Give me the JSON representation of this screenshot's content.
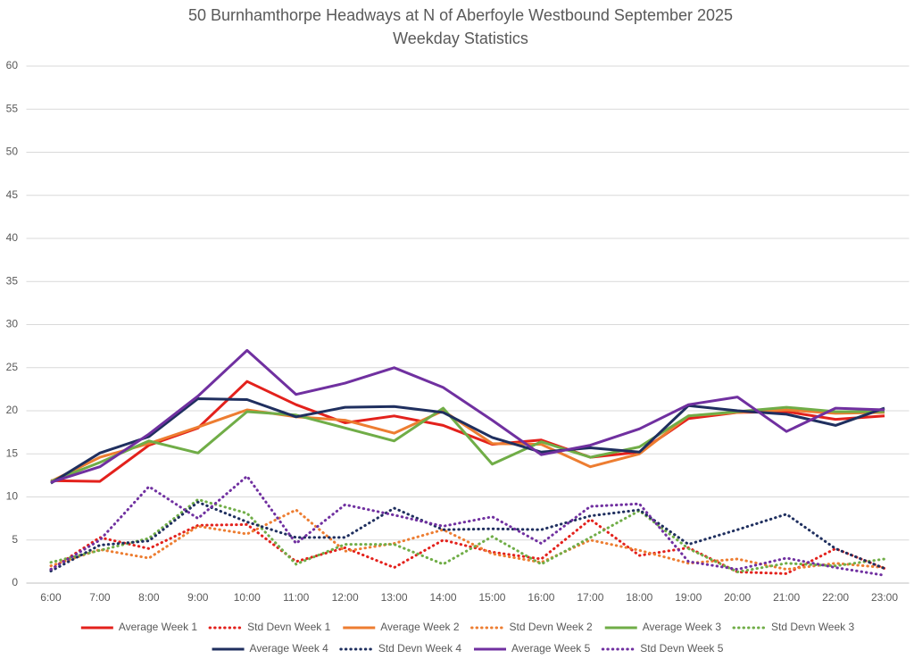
{
  "chart_data": {
    "type": "line",
    "title": "50 Burnhamthorpe Headways at N of Aberfoyle Westbound September 2025",
    "subtitle": "Weekday Statistics",
    "categories": [
      "6:00",
      "7:00",
      "8:00",
      "9:00",
      "10:00",
      "11:00",
      "12:00",
      "13:00",
      "14:00",
      "15:00",
      "16:00",
      "17:00",
      "18:00",
      "19:00",
      "20:00",
      "21:00",
      "22:00",
      "23:00"
    ],
    "ylim": [
      0,
      60
    ],
    "yticks": [
      0,
      5,
      10,
      15,
      20,
      25,
      30,
      35,
      40,
      45,
      50,
      55,
      60
    ],
    "grid": true,
    "legend": "bottom",
    "series": [
      {
        "name": "Average Week 1",
        "color": "#e3211c",
        "style": "solid",
        "values": [
          11.9,
          11.8,
          16.0,
          18.0,
          23.4,
          20.7,
          18.6,
          19.4,
          18.3,
          16.1,
          16.6,
          14.6,
          15.2,
          19.1,
          19.8,
          19.9,
          19.0,
          19.4
        ]
      },
      {
        "name": "Std Devn Week 1",
        "color": "#e3211c",
        "style": "dotted",
        "values": [
          1.6,
          5.3,
          4.0,
          6.7,
          6.8,
          2.5,
          4.1,
          1.8,
          5.0,
          3.6,
          2.8,
          7.4,
          3.2,
          4.1,
          1.3,
          1.1,
          4.0,
          1.7
        ]
      },
      {
        "name": "Average Week 2",
        "color": "#ed7d31",
        "style": "solid",
        "values": [
          11.8,
          14.6,
          16.2,
          18.1,
          20.1,
          19.3,
          18.9,
          17.4,
          20.0,
          16.2,
          16.1,
          13.5,
          15.0,
          19.4,
          19.8,
          20.1,
          19.7,
          19.8
        ]
      },
      {
        "name": "Std Devn Week 2",
        "color": "#ed7d31",
        "style": "dotted",
        "values": [
          2.0,
          3.9,
          2.9,
          6.6,
          5.7,
          8.5,
          3.7,
          4.6,
          6.2,
          3.4,
          2.4,
          5.0,
          3.8,
          2.3,
          2.8,
          1.6,
          2.3,
          1.8
        ]
      },
      {
        "name": "Average Week 3",
        "color": "#70ad47",
        "style": "solid",
        "values": [
          11.8,
          14.0,
          16.5,
          15.1,
          19.9,
          19.5,
          18.0,
          16.5,
          20.3,
          13.8,
          16.4,
          14.6,
          15.8,
          19.4,
          19.9,
          20.4,
          19.9,
          19.9
        ]
      },
      {
        "name": "Std Devn Week 3",
        "color": "#70ad47",
        "style": "dotted",
        "values": [
          2.4,
          3.8,
          5.2,
          9.7,
          8.1,
          2.2,
          4.5,
          4.5,
          2.2,
          5.4,
          2.2,
          5.3,
          8.4,
          4.0,
          1.3,
          2.3,
          2.0,
          2.8
        ]
      },
      {
        "name": "Average Week 4",
        "color": "#1f2f5f",
        "style": "solid",
        "values": [
          11.6,
          15.1,
          17.0,
          21.4,
          21.3,
          19.3,
          20.4,
          20.5,
          19.8,
          16.9,
          15.2,
          15.7,
          15.2,
          20.6,
          20.0,
          19.6,
          18.3,
          20.3
        ]
      },
      {
        "name": "Std Devn Week 4",
        "color": "#1f2f5f",
        "style": "dotted",
        "values": [
          1.4,
          4.4,
          4.9,
          9.4,
          7.1,
          5.3,
          5.3,
          8.7,
          6.2,
          6.3,
          6.2,
          7.8,
          8.5,
          4.5,
          6.2,
          8.0,
          4.0,
          1.7
        ]
      },
      {
        "name": "Average Week 5",
        "color": "#7030a0",
        "style": "solid",
        "values": [
          11.7,
          13.5,
          17.3,
          21.7,
          27.0,
          21.9,
          23.2,
          25.0,
          22.7,
          18.9,
          14.9,
          16.0,
          17.9,
          20.7,
          21.6,
          17.6,
          20.3,
          20.1
        ]
      },
      {
        "name": "Std Devn Week 5",
        "color": "#7030a0",
        "style": "dotted",
        "values": [
          1.6,
          5.0,
          11.2,
          7.5,
          12.4,
          4.6,
          9.1,
          7.9,
          6.6,
          7.7,
          4.6,
          8.9,
          9.2,
          2.5,
          1.6,
          2.9,
          1.8,
          0.9
        ]
      }
    ]
  }
}
